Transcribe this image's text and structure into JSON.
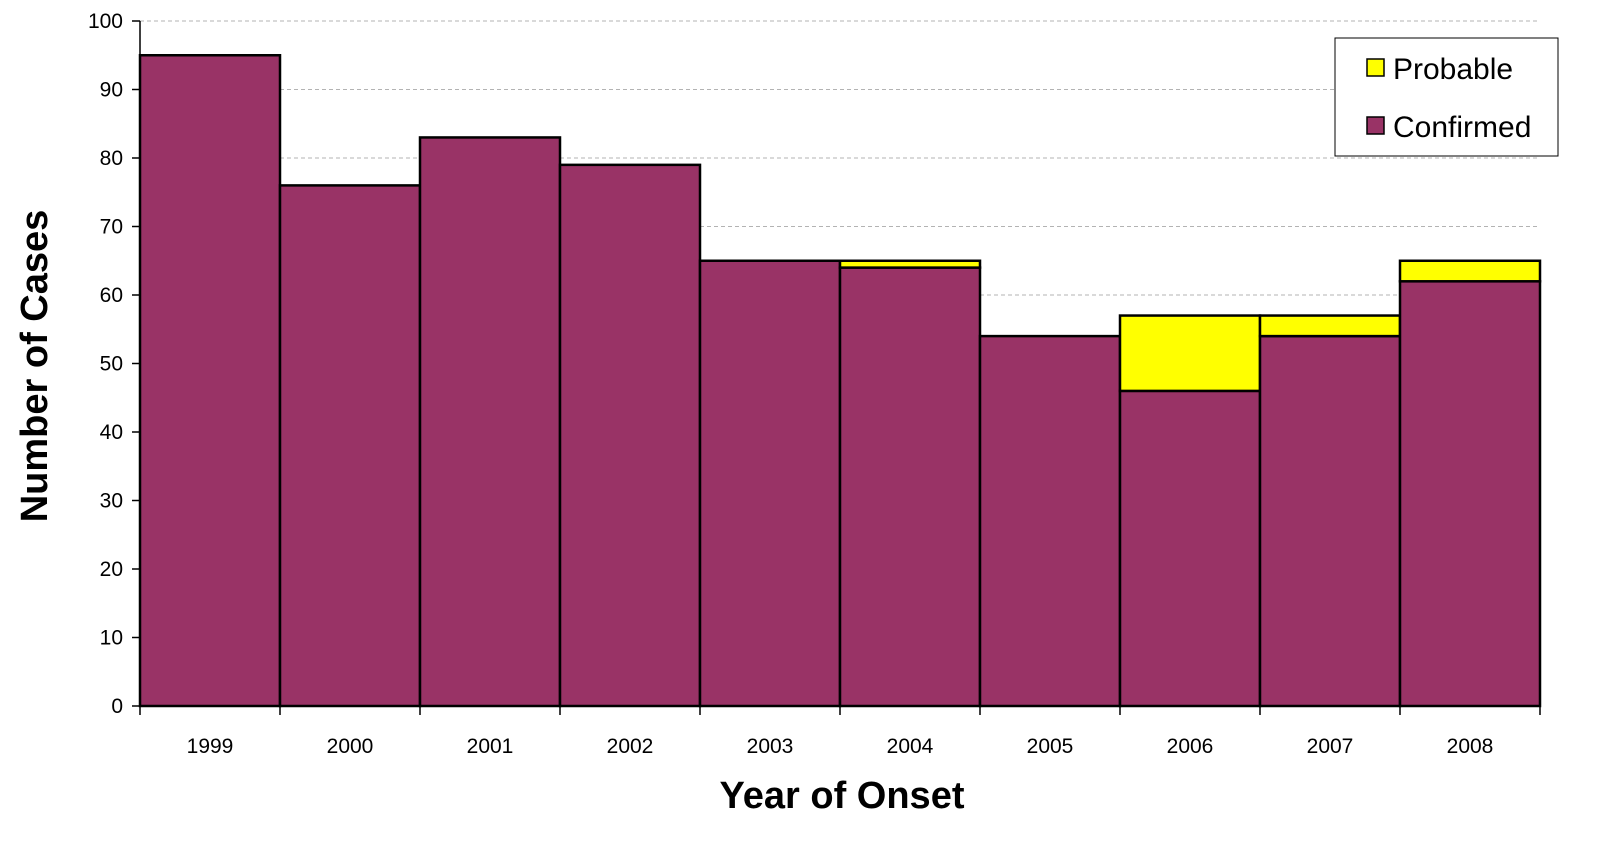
{
  "chart_data": {
    "type": "bar",
    "stacked": true,
    "categories": [
      "1999",
      "2000",
      "2001",
      "2002",
      "2003",
      "2004",
      "2005",
      "2006",
      "2007",
      "2008"
    ],
    "series": [
      {
        "name": "Confirmed",
        "color": "#993366",
        "values": [
          95,
          76,
          83,
          79,
          65,
          64,
          54,
          46,
          54,
          62
        ]
      },
      {
        "name": "Probable",
        "color": "#ffff00",
        "values": [
          0,
          0,
          0,
          0,
          0,
          1,
          0,
          11,
          3,
          3
        ]
      }
    ],
    "xlabel": "Year of Onset",
    "ylabel": "Number of Cases",
    "ylim": [
      0,
      100
    ],
    "yticks": [
      0,
      10,
      20,
      30,
      40,
      50,
      60,
      70,
      80,
      90,
      100
    ],
    "grid": true,
    "legend_position": "top-right",
    "legend_order": [
      "Probable",
      "Confirmed"
    ]
  }
}
